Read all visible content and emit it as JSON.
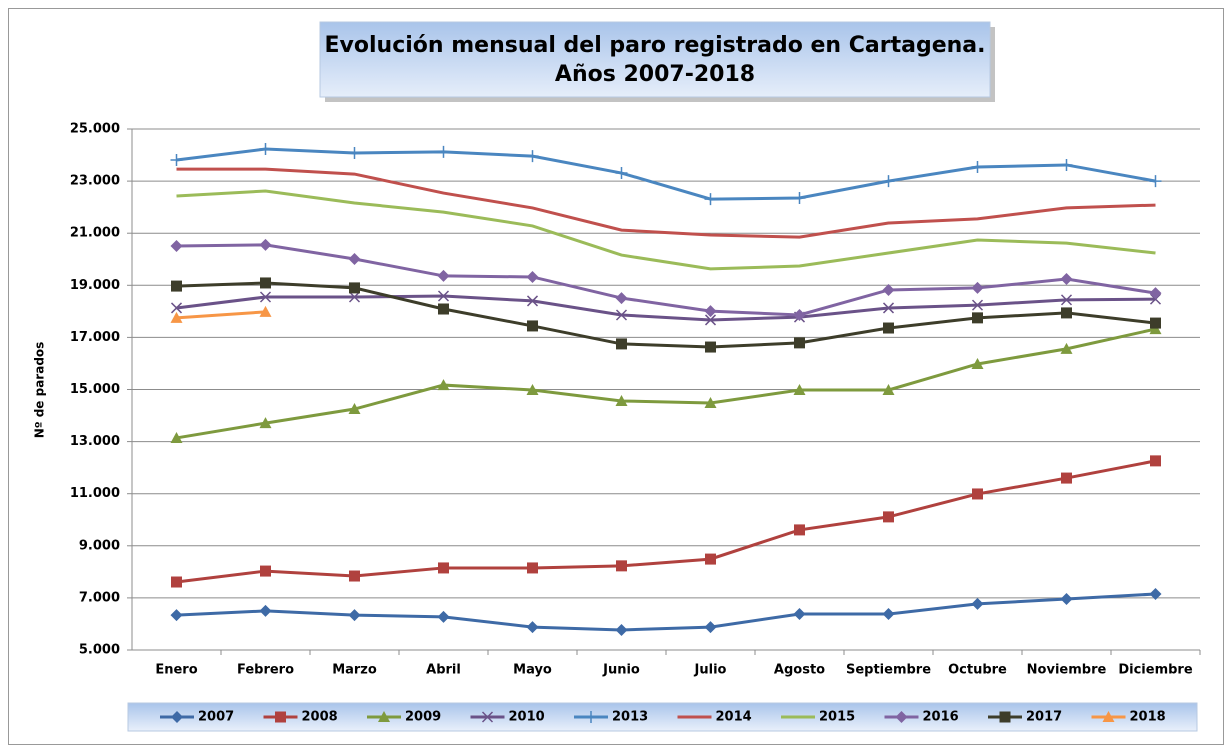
{
  "chart_data": {
    "type": "line",
    "title": [
      "Evolución mensual del paro registrado en Cartagena.",
      "Años 2007-2018"
    ],
    "y_label": "Nº de parados",
    "categories": [
      "Enero",
      "Febrero",
      "Marzo",
      "Abril",
      "Mayo",
      "Junio",
      "Julio",
      "Agosto",
      "Septiembre",
      "Octubre",
      "Noviembre",
      "Diciembre"
    ],
    "ylim": [
      5000,
      25000
    ],
    "yticks": [
      {
        "value": 5000,
        "label": "5.000"
      },
      {
        "value": 7000,
        "label": "7.000"
      },
      {
        "value": 9000,
        "label": "9.000"
      },
      {
        "value": 11000,
        "label": "11.000"
      },
      {
        "value": 13000,
        "label": "13.000"
      },
      {
        "value": 15000,
        "label": "15.000"
      },
      {
        "value": 17000,
        "label": "17.000"
      },
      {
        "value": 19000,
        "label": "19.000"
      },
      {
        "value": 21000,
        "label": "21.000"
      },
      {
        "value": 23000,
        "label": "23.000"
      },
      {
        "value": 25000,
        "label": "25.000"
      }
    ],
    "grid": true,
    "legend": "bottom",
    "series": [
      {
        "name": "2007",
        "color": "#3e6aa6",
        "marker": "diamond",
        "values": [
          6340,
          6500,
          6340,
          6270,
          5880,
          5770,
          5880,
          6380,
          6380,
          6770,
          6960,
          7150
        ]
      },
      {
        "name": "2008",
        "color": "#b0413e",
        "marker": "square",
        "values": [
          7610,
          8030,
          7840,
          8150,
          8150,
          8230,
          8490,
          9610,
          10110,
          10990,
          11600,
          12260
        ]
      },
      {
        "name": "2009",
        "color": "#7e9a3e",
        "marker": "triangle",
        "values": [
          13140,
          13710,
          14250,
          15170,
          14980,
          14560,
          14480,
          14980,
          14980,
          15980,
          16560,
          17320
        ]
      },
      {
        "name": "2010",
        "color": "#6a5288",
        "marker": "x",
        "values": [
          18130,
          18550,
          18550,
          18590,
          18400,
          17860,
          17670,
          17780,
          18130,
          18240,
          18440,
          18470
        ]
      },
      {
        "name": "2013",
        "color": "#4a86c0",
        "marker": "plus",
        "values": [
          23810,
          24230,
          24080,
          24120,
          23960,
          23310,
          22310,
          22350,
          23000,
          23540,
          23620,
          23000
        ]
      },
      {
        "name": "2014",
        "color": "#c0504d",
        "marker": "none",
        "values": [
          23460,
          23460,
          23270,
          22540,
          21970,
          21120,
          20930,
          20850,
          21390,
          21550,
          21970,
          22080
        ]
      },
      {
        "name": "2015",
        "color": "#9bbb59",
        "marker": "none",
        "values": [
          22430,
          22620,
          22160,
          21810,
          21280,
          20160,
          19630,
          19740,
          20240,
          20740,
          20620,
          20240
        ]
      },
      {
        "name": "2016",
        "color": "#8064a2",
        "marker": "diamond",
        "values": [
          20510,
          20550,
          20010,
          19360,
          19320,
          18510,
          18010,
          17860,
          18820,
          18900,
          19240,
          18700
        ]
      },
      {
        "name": "2017",
        "color": "#3d3d2a",
        "marker": "square",
        "values": [
          18970,
          19090,
          18900,
          18090,
          17440,
          16750,
          16630,
          16790,
          17360,
          17750,
          17940,
          17550
        ]
      },
      {
        "name": "2018",
        "color": "#f79646",
        "marker": "triangle",
        "values": [
          17750,
          17980,
          null,
          null,
          null,
          null,
          null,
          null,
          null,
          null,
          null,
          null
        ]
      }
    ]
  }
}
